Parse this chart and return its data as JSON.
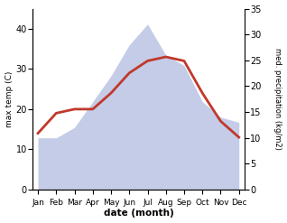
{
  "months": [
    "Jan",
    "Feb",
    "Mar",
    "Apr",
    "May",
    "Jun",
    "Jul",
    "Aug",
    "Sep",
    "Oct",
    "Nov",
    "Dec"
  ],
  "temperature": [
    14,
    19,
    20,
    20,
    24,
    29,
    32,
    33,
    32,
    24,
    17,
    13
  ],
  "precipitation": [
    10,
    10,
    12,
    17,
    22,
    28,
    32,
    26,
    24,
    17,
    14,
    13
  ],
  "temp_color": "#c0392b",
  "precip_fill_color": "#c5cce8",
  "temp_ylim": [
    0,
    45
  ],
  "precip_ylim": [
    0,
    35
  ],
  "temp_yticks": [
    0,
    10,
    20,
    30,
    40
  ],
  "precip_yticks": [
    0,
    5,
    10,
    15,
    20,
    25,
    30,
    35
  ],
  "xlabel": "date (month)",
  "ylabel_left": "max temp (C)",
  "ylabel_right": "med. precipitation (kg/m2)",
  "line_width": 2.0,
  "background_color": "#ffffff"
}
